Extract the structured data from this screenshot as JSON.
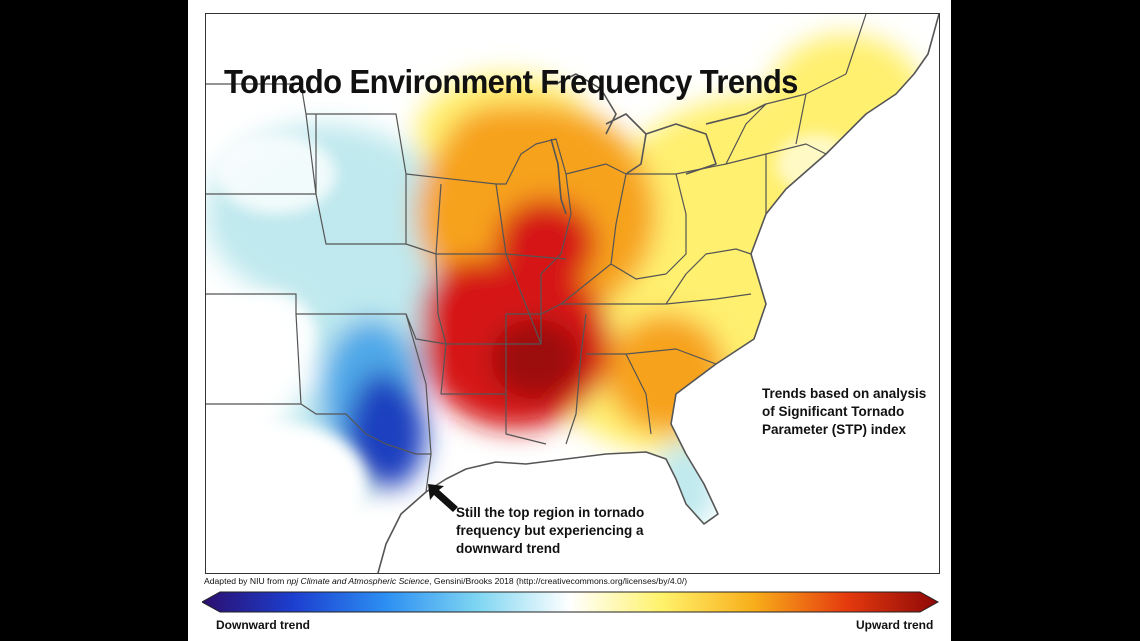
{
  "map": {
    "title": "Tornado Environment Frequency Trends",
    "note": "Trends based on analysis of Significant Tornado Parameter (STP) index",
    "callout": "Still the top region in tornado frequency but experiencing a downward trend",
    "region": "Eastern and Central United States",
    "colors": {
      "strong_down": "#1f3fbf",
      "down": "#4fa9e8",
      "slight_down": "#bfe9ee",
      "neutral": "#ffffff",
      "slight_up": "#fff070",
      "up": "#f7a21b",
      "strong_up": "#d61212",
      "extreme_up": "#9c0a0a",
      "borders": "#555555"
    },
    "icons": [
      "arrow-pointer-icon"
    ]
  },
  "credit": {
    "prefix": "Adapted by NIU from ",
    "journal": "npj Climate and Atmospheric Science",
    "suffix": ", Gensini/Brooks 2018 (http://creativecommons.org/licenses/by/4.0/)"
  },
  "legend": {
    "low_label": "Downward trend",
    "high_label": "Upward trend",
    "gradient": [
      "#2b0e6e",
      "#1c3fd0",
      "#2d8ff2",
      "#7fd6f2",
      "#ffffff",
      "#fff26b",
      "#f8ae1a",
      "#e53b0e",
      "#8e0707"
    ]
  }
}
